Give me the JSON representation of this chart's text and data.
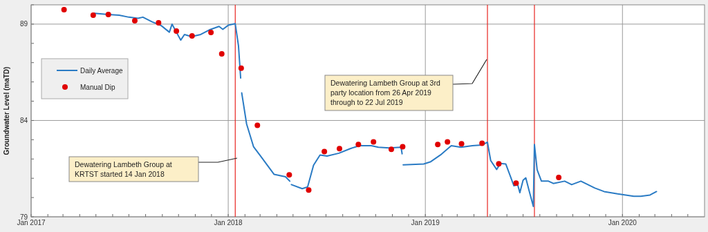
{
  "chart_data": {
    "type": "line",
    "ylabel": "Groundwater Level (maTD)",
    "xlim": [
      "2017-01-01",
      "2020-06-01"
    ],
    "xticks": [
      {
        "value": "2017-01-01",
        "label": "Jan 2017"
      },
      {
        "value": "2017-02-01",
        "label": null
      },
      {
        "value": "2017-03-01",
        "label": null
      },
      {
        "value": "2017-04-01",
        "label": null
      },
      {
        "value": "2017-05-01",
        "label": null
      },
      {
        "value": "2017-06-01",
        "label": null
      },
      {
        "value": "2017-07-01",
        "label": null
      },
      {
        "value": "2017-08-01",
        "label": null
      },
      {
        "value": "2017-09-01",
        "label": null
      },
      {
        "value": "2017-10-01",
        "label": null
      },
      {
        "value": "2017-11-01",
        "label": null
      },
      {
        "value": "2017-12-01",
        "label": null
      },
      {
        "value": "2018-01-01",
        "label": "Jan 2018"
      },
      {
        "value": "2018-02-01",
        "label": null
      },
      {
        "value": "2018-03-01",
        "label": null
      },
      {
        "value": "2018-04-01",
        "label": null
      },
      {
        "value": "2018-05-01",
        "label": null
      },
      {
        "value": "2018-06-01",
        "label": null
      },
      {
        "value": "2018-07-01",
        "label": null
      },
      {
        "value": "2018-08-01",
        "label": null
      },
      {
        "value": "2018-09-01",
        "label": null
      },
      {
        "value": "2018-10-01",
        "label": null
      },
      {
        "value": "2018-11-01",
        "label": null
      },
      {
        "value": "2018-12-01",
        "label": null
      },
      {
        "value": "2019-01-01",
        "label": "Jan 2019"
      },
      {
        "value": "2019-02-01",
        "label": null
      },
      {
        "value": "2019-03-01",
        "label": null
      },
      {
        "value": "2019-04-01",
        "label": null
      },
      {
        "value": "2019-05-01",
        "label": null
      },
      {
        "value": "2019-06-01",
        "label": null
      },
      {
        "value": "2019-07-01",
        "label": null
      },
      {
        "value": "2019-08-01",
        "label": null
      },
      {
        "value": "2019-09-01",
        "label": null
      },
      {
        "value": "2019-10-01",
        "label": null
      },
      {
        "value": "2019-11-01",
        "label": null
      },
      {
        "value": "2019-12-01",
        "label": null
      },
      {
        "value": "2020-01-01",
        "label": "Jan 2020"
      },
      {
        "value": "2020-02-01",
        "label": null
      },
      {
        "value": "2020-03-01",
        "label": null
      },
      {
        "value": "2020-04-01",
        "label": null
      },
      {
        "value": "2020-05-01",
        "label": null
      }
    ],
    "ylim": [
      79,
      90
    ],
    "yticks": [
      79,
      {
        "value": 80,
        "label": null
      },
      {
        "value": 81,
        "label": null
      },
      {
        "value": 82,
        "label": null
      },
      {
        "value": 83,
        "label": null
      },
      84,
      {
        "value": 85,
        "label": null
      },
      {
        "value": 86,
        "label": null
      },
      {
        "value": 87,
        "label": null
      },
      {
        "value": 88,
        "label": null
      },
      89,
      {
        "value": 90,
        "label": null
      }
    ],
    "grid": true,
    "legend": "left",
    "series": [
      {
        "name": "Daily Average",
        "color": "#2a7bc4",
        "x": [
          "2017-04-28",
          "2017-05-24",
          "2017-06-13",
          "2017-07-01",
          "2017-07-18",
          "2017-07-27",
          "2017-08-13",
          "2017-08-30",
          "2017-09-14",
          "2017-09-19",
          "2017-09-27",
          "2017-10-05",
          "2017-10-12",
          "2017-10-25",
          "2017-11-11",
          "2017-11-27",
          "2017-12-15",
          "2017-12-22",
          "2018-01-01",
          "2018-01-14",
          "2018-01-20",
          "2018-01-24",
          "2018-01-25",
          "2018-01-26",
          "2018-02-04",
          "2018-02-17",
          "2018-03-02",
          "2018-03-27",
          "2018-04-17",
          "2018-04-25",
          "2018-04-27",
          "2018-04-28",
          "2018-05-18",
          "2018-05-28",
          "2018-06-08",
          "2018-06-20",
          "2018-07-03",
          "2018-07-25",
          "2018-08-15",
          "2018-09-01",
          "2018-09-23",
          "2018-10-06",
          "2018-10-26",
          "2018-11-17",
          "2018-11-19",
          "2018-11-20",
          "2018-11-21",
          "2018-12-29",
          "2019-01-11",
          "2019-01-29",
          "2019-02-18",
          "2019-03-08",
          "2019-03-29",
          "2019-04-16",
          "2019-04-26",
          "2019-05-02",
          "2019-05-13",
          "2019-05-20",
          "2019-05-30",
          "2019-06-14",
          "2019-06-21",
          "2019-06-25",
          "2019-07-01",
          "2019-07-06",
          "2019-07-12",
          "2019-07-20",
          "2019-07-22",
          "2019-07-27",
          "2019-08-04",
          "2019-08-17",
          "2019-08-26",
          "2019-09-16",
          "2019-09-29",
          "2019-10-16",
          "2019-11-11",
          "2019-11-28",
          "2019-12-23",
          "2020-01-22",
          "2020-02-04",
          "2020-02-21",
          "2020-03-04"
        ],
        "values": [
          89.56,
          89.5,
          89.46,
          89.36,
          89.3,
          89.36,
          89.12,
          88.92,
          88.58,
          89.0,
          88.58,
          88.17,
          88.46,
          88.35,
          88.46,
          88.7,
          88.88,
          88.73,
          88.94,
          89.02,
          87.87,
          86.2,
          null,
          85.43,
          83.82,
          82.63,
          82.15,
          81.2,
          81.08,
          80.85,
          null,
          80.67,
          80.46,
          80.55,
          81.68,
          82.21,
          82.15,
          82.3,
          82.54,
          82.69,
          82.69,
          82.61,
          82.57,
          82.61,
          82.27,
          null,
          81.7,
          81.74,
          81.86,
          82.21,
          82.69,
          82.61,
          82.69,
          82.73,
          82.87,
          81.92,
          81.46,
          81.77,
          81.74,
          80.61,
          80.67,
          80.25,
          80.9,
          81.02,
          80.37,
          79.54,
          82.75,
          81.44,
          80.85,
          80.85,
          80.73,
          80.85,
          80.67,
          80.85,
          80.49,
          80.31,
          80.19,
          80.07,
          80.07,
          80.13,
          80.31
        ]
      },
      {
        "name": "Manual Dip",
        "type": "scatter",
        "color": "#e00000",
        "x": [
          "2017-03-03",
          "2017-04-26",
          "2017-05-24",
          "2017-07-12",
          "2017-08-25",
          "2017-09-27",
          "2017-10-26",
          "2017-11-30",
          "2017-12-20",
          "2018-01-25",
          "2018-02-24",
          "2018-04-24",
          "2018-05-30",
          "2018-06-28",
          "2018-07-26",
          "2018-08-30",
          "2018-09-27",
          "2018-10-30",
          "2018-11-20",
          "2019-01-24",
          "2019-02-11",
          "2019-03-09",
          "2019-04-16",
          "2019-05-17",
          "2019-06-18",
          "2019-09-05"
        ],
        "values": [
          89.75,
          89.46,
          89.5,
          89.18,
          89.07,
          88.64,
          88.39,
          88.57,
          87.46,
          86.71,
          83.75,
          81.18,
          80.39,
          82.39,
          82.54,
          82.75,
          82.89,
          82.5,
          82.64,
          82.75,
          82.89,
          82.79,
          82.82,
          81.75,
          80.75,
          81.04
        ]
      }
    ],
    "ref_lines": [
      {
        "axis": "x",
        "value": "2018-01-14",
        "color": "#e8231f"
      },
      {
        "axis": "x",
        "value": "2019-04-26",
        "color": "#e8231f"
      },
      {
        "axis": "x",
        "value": "2019-07-22",
        "color": "#e8231f"
      }
    ],
    "annotations": [
      "Dewatering Lambeth Group at KRTST started 14 Jan 2018",
      "Dewatering Lambeth Group at 3rd party location from 26 Apr 2019 through to 22 Jul 2019"
    ]
  }
}
